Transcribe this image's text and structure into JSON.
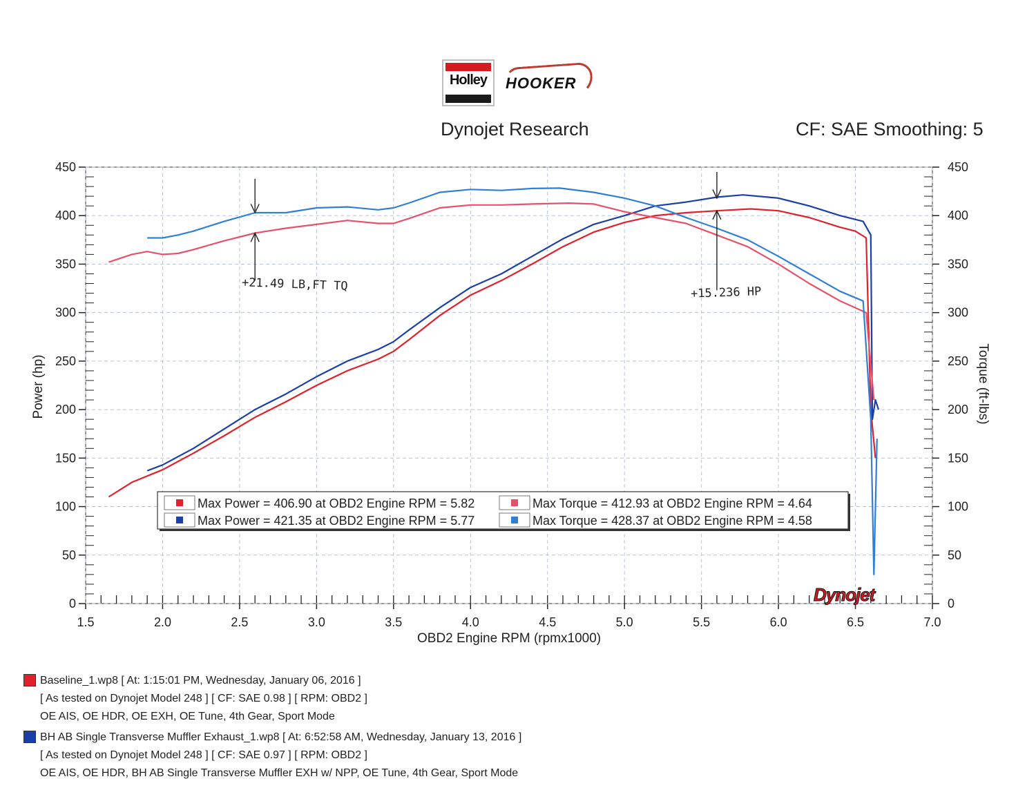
{
  "header": {
    "logo_left": "Holley",
    "logo_right": "HOOKER",
    "company": "Dynojet Research",
    "correction": "CF: SAE Smoothing: 5"
  },
  "colors": {
    "baseline_power": "#e0202a",
    "baseline_torque": "#e8506a",
    "test_power": "#1a3fa8",
    "test_torque": "#2f7fd6",
    "grid": "#b8c4d8"
  },
  "annotations": {
    "torque_gain": "+21.49 LB,FT TQ",
    "power_gain": "+15.236 HP"
  },
  "brand_mark": "Dynojet",
  "chart_data": {
    "type": "line",
    "xlabel": "OBD2 Engine RPM (rpmx1000)",
    "ylabel_left": "Power (hp)",
    "ylabel_right": "Torque (ft-lbs)",
    "xlim": [
      1.5,
      7.0
    ],
    "ylim": [
      0,
      450
    ],
    "ylim_right": [
      0,
      450
    ],
    "x_ticks": [
      "1.5",
      "2.0",
      "2.5",
      "3.0",
      "3.5",
      "4.0",
      "4.5",
      "5.0",
      "5.5",
      "6.0",
      "6.5",
      "7.0"
    ],
    "y_ticks": [
      "0",
      "50",
      "100",
      "150",
      "200",
      "250",
      "300",
      "350",
      "400",
      "450"
    ],
    "grid": true,
    "legend_position": "bottom-center",
    "legend": [
      [
        "Max Power = 406.90 at OBD2 Engine RPM = 5.82",
        "Max Torque = 412.93 at OBD2 Engine RPM = 4.64"
      ],
      [
        "Max Power = 421.35 at OBD2 Engine RPM = 5.77",
        "Max Torque = 428.37 at OBD2 Engine RPM = 4.58"
      ]
    ],
    "series": [
      {
        "name": "Max Power = 406.90 at OBD2 Engine RPM = 5.82",
        "axis": "left",
        "points": [
          [
            1.65,
            110
          ],
          [
            1.8,
            125
          ],
          [
            2.0,
            138
          ],
          [
            2.2,
            155
          ],
          [
            2.4,
            173
          ],
          [
            2.6,
            192
          ],
          [
            2.8,
            208
          ],
          [
            3.0,
            225
          ],
          [
            3.2,
            240
          ],
          [
            3.4,
            252
          ],
          [
            3.5,
            260
          ],
          [
            3.6,
            272
          ],
          [
            3.8,
            297
          ],
          [
            4.0,
            318
          ],
          [
            4.2,
            333
          ],
          [
            4.4,
            350
          ],
          [
            4.6,
            368
          ],
          [
            4.8,
            383
          ],
          [
            5.0,
            393
          ],
          [
            5.2,
            400
          ],
          [
            5.4,
            403
          ],
          [
            5.6,
            405
          ],
          [
            5.82,
            406.9
          ],
          [
            6.0,
            405
          ],
          [
            6.2,
            398
          ],
          [
            6.4,
            388
          ],
          [
            6.5,
            384
          ],
          [
            6.57,
            377
          ],
          [
            6.6,
            200
          ],
          [
            6.63,
            150
          ]
        ]
      },
      {
        "name": "Max Power = 421.35 at OBD2 Engine RPM = 5.77",
        "axis": "left",
        "points": [
          [
            1.9,
            137
          ],
          [
            2.0,
            143
          ],
          [
            2.2,
            160
          ],
          [
            2.4,
            180
          ],
          [
            2.6,
            200
          ],
          [
            2.8,
            216
          ],
          [
            3.0,
            234
          ],
          [
            3.2,
            250
          ],
          [
            3.4,
            262
          ],
          [
            3.5,
            270
          ],
          [
            3.6,
            282
          ],
          [
            3.8,
            305
          ],
          [
            4.0,
            326
          ],
          [
            4.2,
            340
          ],
          [
            4.4,
            358
          ],
          [
            4.6,
            376
          ],
          [
            4.8,
            391
          ],
          [
            5.0,
            400
          ],
          [
            5.2,
            410
          ],
          [
            5.4,
            414
          ],
          [
            5.6,
            419
          ],
          [
            5.77,
            421.35
          ],
          [
            6.0,
            418
          ],
          [
            6.2,
            410
          ],
          [
            6.4,
            400
          ],
          [
            6.55,
            394
          ],
          [
            6.6,
            380
          ],
          [
            6.61,
            190
          ],
          [
            6.63,
            210
          ],
          [
            6.65,
            200
          ]
        ]
      },
      {
        "name": "Max Torque = 412.93 at OBD2 Engine RPM = 4.64",
        "axis": "right",
        "points": [
          [
            1.65,
            352
          ],
          [
            1.8,
            360
          ],
          [
            1.9,
            363
          ],
          [
            2.0,
            360
          ],
          [
            2.1,
            361
          ],
          [
            2.2,
            365
          ],
          [
            2.4,
            374
          ],
          [
            2.6,
            382
          ],
          [
            2.8,
            387
          ],
          [
            3.0,
            391
          ],
          [
            3.2,
            395
          ],
          [
            3.4,
            392
          ],
          [
            3.5,
            392
          ],
          [
            3.6,
            397
          ],
          [
            3.8,
            408
          ],
          [
            4.0,
            411
          ],
          [
            4.2,
            411
          ],
          [
            4.4,
            412
          ],
          [
            4.64,
            412.93
          ],
          [
            4.8,
            412
          ],
          [
            5.0,
            404
          ],
          [
            5.2,
            398
          ],
          [
            5.4,
            392
          ],
          [
            5.6,
            380
          ],
          [
            5.8,
            368
          ],
          [
            6.0,
            350
          ],
          [
            6.2,
            330
          ],
          [
            6.4,
            312
          ],
          [
            6.57,
            300
          ],
          [
            6.62,
            210
          ]
        ]
      },
      {
        "name": "Max Torque = 428.37 at OBD2 Engine RPM = 4.58",
        "axis": "right",
        "points": [
          [
            1.9,
            377
          ],
          [
            2.0,
            377
          ],
          [
            2.1,
            380
          ],
          [
            2.2,
            384
          ],
          [
            2.4,
            394
          ],
          [
            2.6,
            403
          ],
          [
            2.8,
            403
          ],
          [
            3.0,
            408
          ],
          [
            3.2,
            409
          ],
          [
            3.4,
            406
          ],
          [
            3.5,
            408
          ],
          [
            3.6,
            413
          ],
          [
            3.8,
            424
          ],
          [
            4.0,
            427
          ],
          [
            4.2,
            426
          ],
          [
            4.4,
            428
          ],
          [
            4.58,
            428.37
          ],
          [
            4.8,
            424
          ],
          [
            5.0,
            418
          ],
          [
            5.2,
            410
          ],
          [
            5.4,
            398
          ],
          [
            5.6,
            387
          ],
          [
            5.8,
            375
          ],
          [
            6.0,
            358
          ],
          [
            6.2,
            340
          ],
          [
            6.4,
            322
          ],
          [
            6.55,
            312
          ],
          [
            6.6,
            190
          ],
          [
            6.62,
            30
          ],
          [
            6.64,
            170
          ]
        ]
      }
    ]
  },
  "runs": [
    {
      "line1": "Baseline_1.wp8 [ At: 1:15:01 PM, Wednesday, January 06, 2016 ]",
      "line2": "[ As tested on Dynojet Model 248 ]  [ CF: SAE 0.98 ]  [ RPM: OBD2 ]",
      "line3": "OE AIS, OE HDR, OE EXH, OE Tune, 4th Gear, Sport Mode"
    },
    {
      "line1": "BH AB Single Transverse Muffler Exhaust_1.wp8 [ At: 6:52:58 AM, Wednesday, January 13, 2016 ]",
      "line2": "[ As tested on Dynojet Model 248 ]  [ CF: SAE 0.97 ]  [ RPM: OBD2 ]",
      "line3": "OE AIS, OE HDR, BH AB Single Transverse Muffler EXH w/ NPP, OE Tune, 4th Gear, Sport Mode"
    }
  ]
}
